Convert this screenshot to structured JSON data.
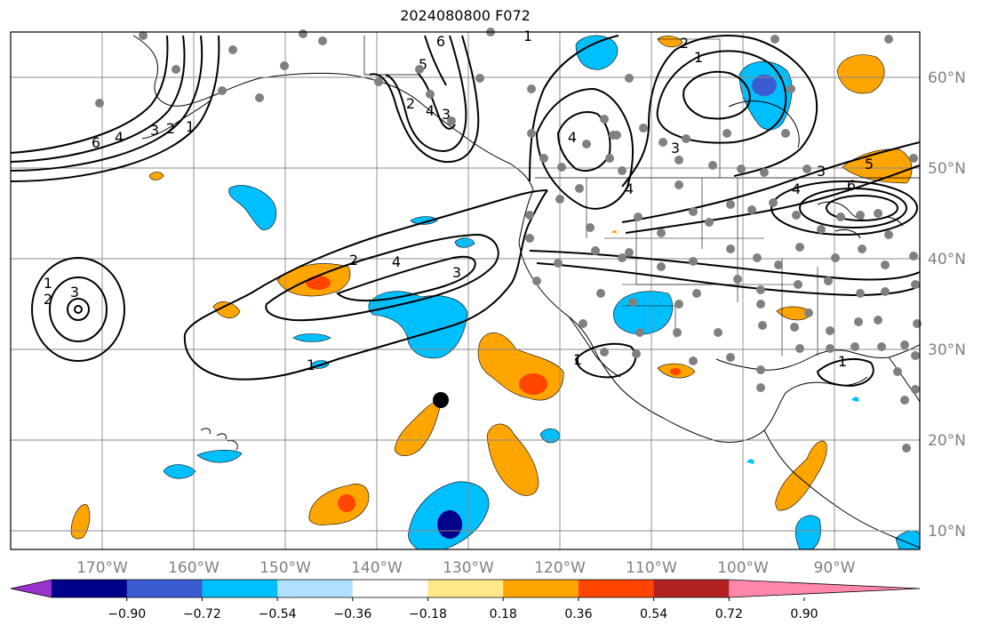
{
  "title": "2024080800 F072",
  "lon_labels": [
    "170°W",
    "160°W",
    "150°W",
    "140°W",
    "130°W",
    "120°W",
    "110°W",
    "100°W",
    "90°W"
  ],
  "lat_labels": [
    "60°N",
    "50°N",
    "40°N",
    "30°N",
    "20°N",
    "10°N"
  ],
  "colorbar": {
    "ticks": [
      "−0.90",
      "−0.72",
      "−0.54",
      "−0.36",
      "−0.18",
      "0.18",
      "0.36",
      "0.54",
      "0.72",
      "0.90"
    ],
    "colors": [
      "#9932cc",
      "#00008b",
      "#3a5bd1",
      "#00bfff",
      "#b0e0ff",
      "#ffffff",
      "#ffe88a",
      "#ffa500",
      "#ff4500",
      "#b22222",
      "#ff88aa"
    ]
  },
  "contour_labels": [
    "6",
    "4",
    "3",
    "2",
    "1",
    "1",
    "2",
    "3",
    "6",
    "5",
    "1",
    "2",
    "1",
    "4",
    "3",
    "2",
    "4",
    "3",
    "4",
    "5",
    "3",
    "4",
    "6",
    "1",
    "1",
    "2",
    "4",
    "3",
    "1"
  ],
  "colors": {
    "orange": "#ffa500",
    "red_orange": "#ff4500",
    "light_blue": "#00bfff",
    "dark_blue": "#00008b",
    "yellow": "#ffe88a",
    "station_dot": "#808080",
    "marker": "#000000"
  }
}
